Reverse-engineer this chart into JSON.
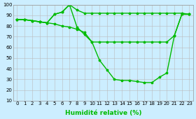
{
  "xlabel": "Humidité relative (%)",
  "x": [
    0,
    1,
    2,
    3,
    4,
    5,
    6,
    7,
    8,
    9,
    10,
    11,
    12,
    13,
    14,
    15,
    16,
    17,
    18,
    19,
    20,
    21,
    22,
    23
  ],
  "line1": [
    86,
    86,
    85,
    84,
    83,
    91,
    93,
    100,
    95,
    92,
    92,
    92,
    92,
    92,
    92,
    92,
    92,
    92,
    92,
    92,
    92,
    92,
    92,
    91
  ],
  "line2": [
    86,
    86,
    85,
    84,
    83,
    91,
    93,
    100,
    79,
    72,
    65,
    48,
    39,
    30,
    29,
    29,
    28,
    27,
    27,
    32,
    36,
    71,
    91,
    91
  ],
  "line3": [
    86,
    86,
    85,
    84,
    83,
    82,
    80,
    79,
    77,
    74,
    65,
    65,
    65,
    65,
    65,
    65,
    65,
    65,
    65,
    65,
    65,
    71,
    91,
    91
  ],
  "background_color": "#cceeff",
  "grid_color": "#bbbbbb",
  "line_color": "#00bb00",
  "ylim": [
    10,
    100
  ],
  "yticks": [
    10,
    20,
    30,
    40,
    50,
    60,
    70,
    80,
    90,
    100
  ],
  "xticks": [
    0,
    1,
    2,
    3,
    4,
    5,
    6,
    7,
    8,
    9,
    10,
    11,
    12,
    13,
    14,
    15,
    16,
    17,
    18,
    19,
    20,
    21,
    22,
    23
  ],
  "tick_fontsize": 5.0,
  "xlabel_fontsize": 6.5,
  "figsize": [
    2.8,
    1.7
  ],
  "dpi": 100
}
